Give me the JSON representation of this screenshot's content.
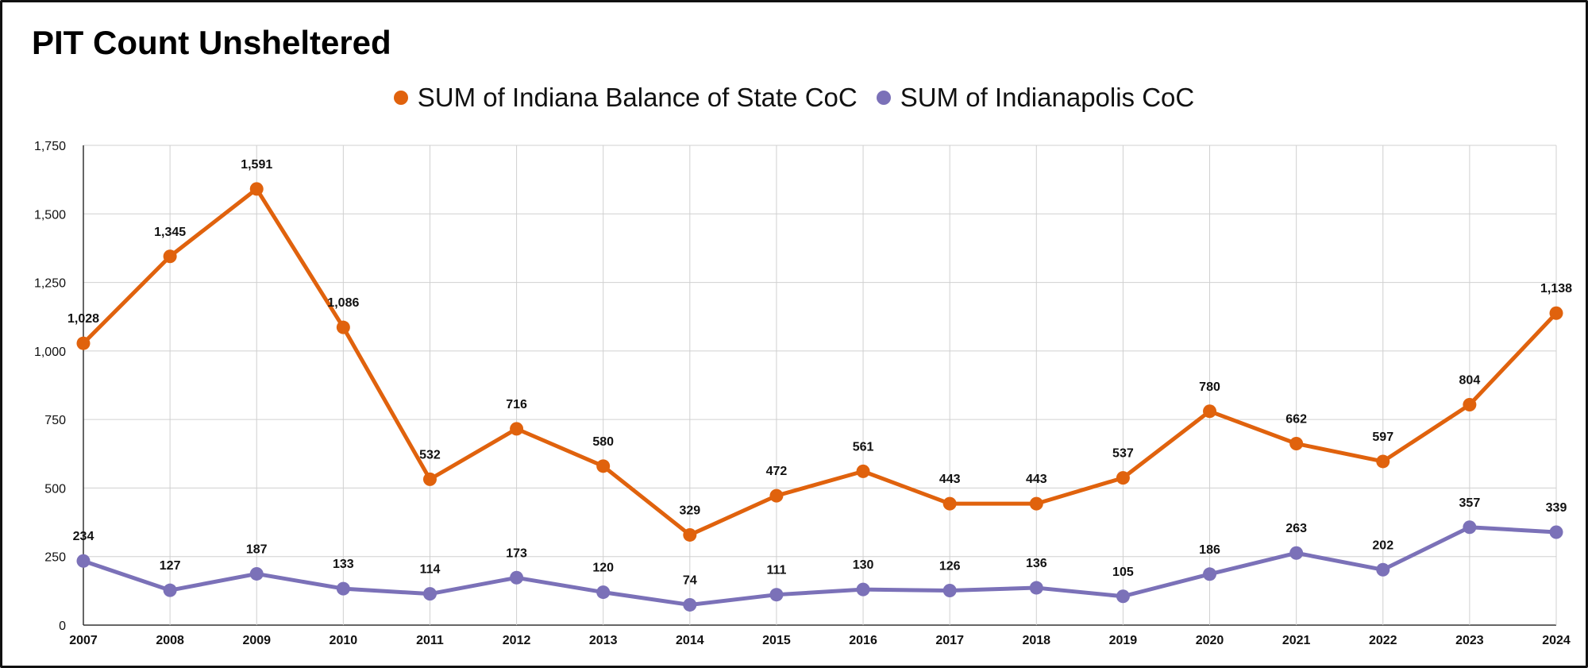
{
  "chart_data": {
    "type": "line",
    "title": "PIT Count Unsheltered",
    "xlabel": "",
    "ylabel": "",
    "categories": [
      "2007",
      "2008",
      "2009",
      "2010",
      "2011",
      "2012",
      "2013",
      "2014",
      "2015",
      "2016",
      "2017",
      "2018",
      "2019",
      "2020",
      "2021",
      "2022",
      "2023",
      "2024"
    ],
    "ylim": [
      0,
      1750
    ],
    "yticks": [
      0,
      250,
      500,
      750,
      1000,
      1250,
      1500,
      1750
    ],
    "ytick_labels": [
      "0",
      "250",
      "500",
      "750",
      "1,000",
      "1,250",
      "1,500",
      "1,750"
    ],
    "grid": true,
    "legend_position": "top-center",
    "series": [
      {
        "name": "SUM of Indiana Balance of State CoC",
        "color": "#e0620d",
        "values": [
          1028,
          1345,
          1591,
          1086,
          532,
          716,
          580,
          329,
          472,
          561,
          443,
          443,
          537,
          780,
          662,
          597,
          804,
          1138
        ],
        "labels": [
          "1,028",
          "1,345",
          "1,591",
          "1,086",
          "532",
          "716",
          "580",
          "329",
          "472",
          "561",
          "443",
          "443",
          "537",
          "780",
          "662",
          "597",
          "804",
          "1,138"
        ]
      },
      {
        "name": "SUM of Indianapolis CoC",
        "color": "#7b71b8",
        "values": [
          234,
          127,
          187,
          133,
          114,
          173,
          120,
          74,
          111,
          130,
          126,
          136,
          105,
          186,
          263,
          202,
          357,
          339
        ],
        "labels": [
          "234",
          "127",
          "187",
          "133",
          "114",
          "173",
          "120",
          "74",
          "111",
          "130",
          "126",
          "136",
          "105",
          "186",
          "263",
          "202",
          "357",
          "339"
        ]
      }
    ]
  }
}
